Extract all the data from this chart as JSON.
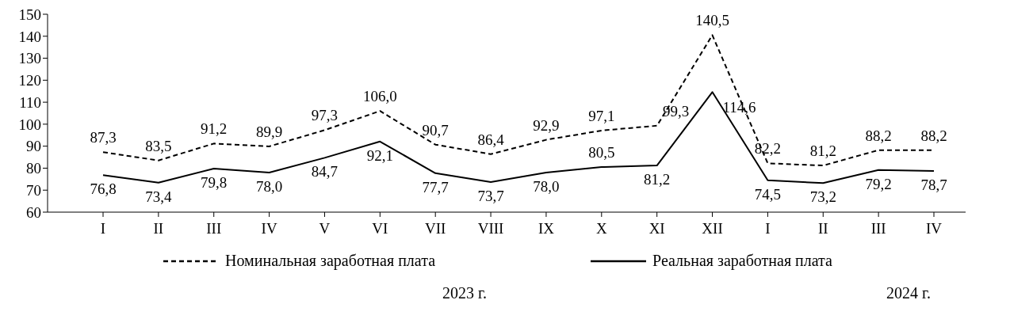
{
  "chart_data": {
    "type": "line",
    "categories": [
      "I",
      "II",
      "III",
      "IV",
      "V",
      "VI",
      "VII",
      "VIII",
      "IX",
      "X",
      "XI",
      "XII",
      "I",
      "II",
      "III",
      "IV"
    ],
    "series": [
      {
        "name": "Номинальная заработная плата",
        "color": "#000000",
        "line_style": "dashed",
        "values": [
          87.3,
          83.5,
          91.2,
          89.9,
          97.3,
          106.0,
          90.7,
          86.4,
          92.9,
          97.1,
          99.3,
          140.5,
          82.2,
          81.2,
          88.2,
          88.2
        ],
        "value_labels": [
          "87,3",
          "83,5",
          "91,2",
          "89,9",
          "97,3",
          "106,0",
          "90,7",
          "86,4",
          "92,9",
          "97,1",
          "99,3",
          "140,5",
          "82,2",
          "81,2",
          "88,2",
          "88,2"
        ]
      },
      {
        "name": "Реальная заработная плата",
        "color": "#000000",
        "line_style": "solid",
        "values": [
          76.8,
          73.4,
          79.8,
          78.0,
          84.7,
          92.1,
          77.7,
          73.7,
          78.0,
          80.5,
          81.2,
          114.6,
          74.5,
          73.2,
          79.2,
          78.7
        ],
        "value_labels": [
          "76,8",
          "73,4",
          "79,8",
          "78,0",
          "84,7",
          "92,1",
          "77,7",
          "73,7",
          "78,0",
          "80,5",
          "81,2",
          "114,6",
          "74,5",
          "73,2",
          "79,2",
          "78,7"
        ]
      }
    ],
    "ylim": [
      60,
      150
    ],
    "yticks": [
      60,
      70,
      80,
      90,
      100,
      110,
      120,
      130,
      140,
      150
    ],
    "grid": false,
    "marker": "none",
    "legend": "bottom",
    "annotations": [
      "2023 г.",
      "2024 г."
    ]
  }
}
